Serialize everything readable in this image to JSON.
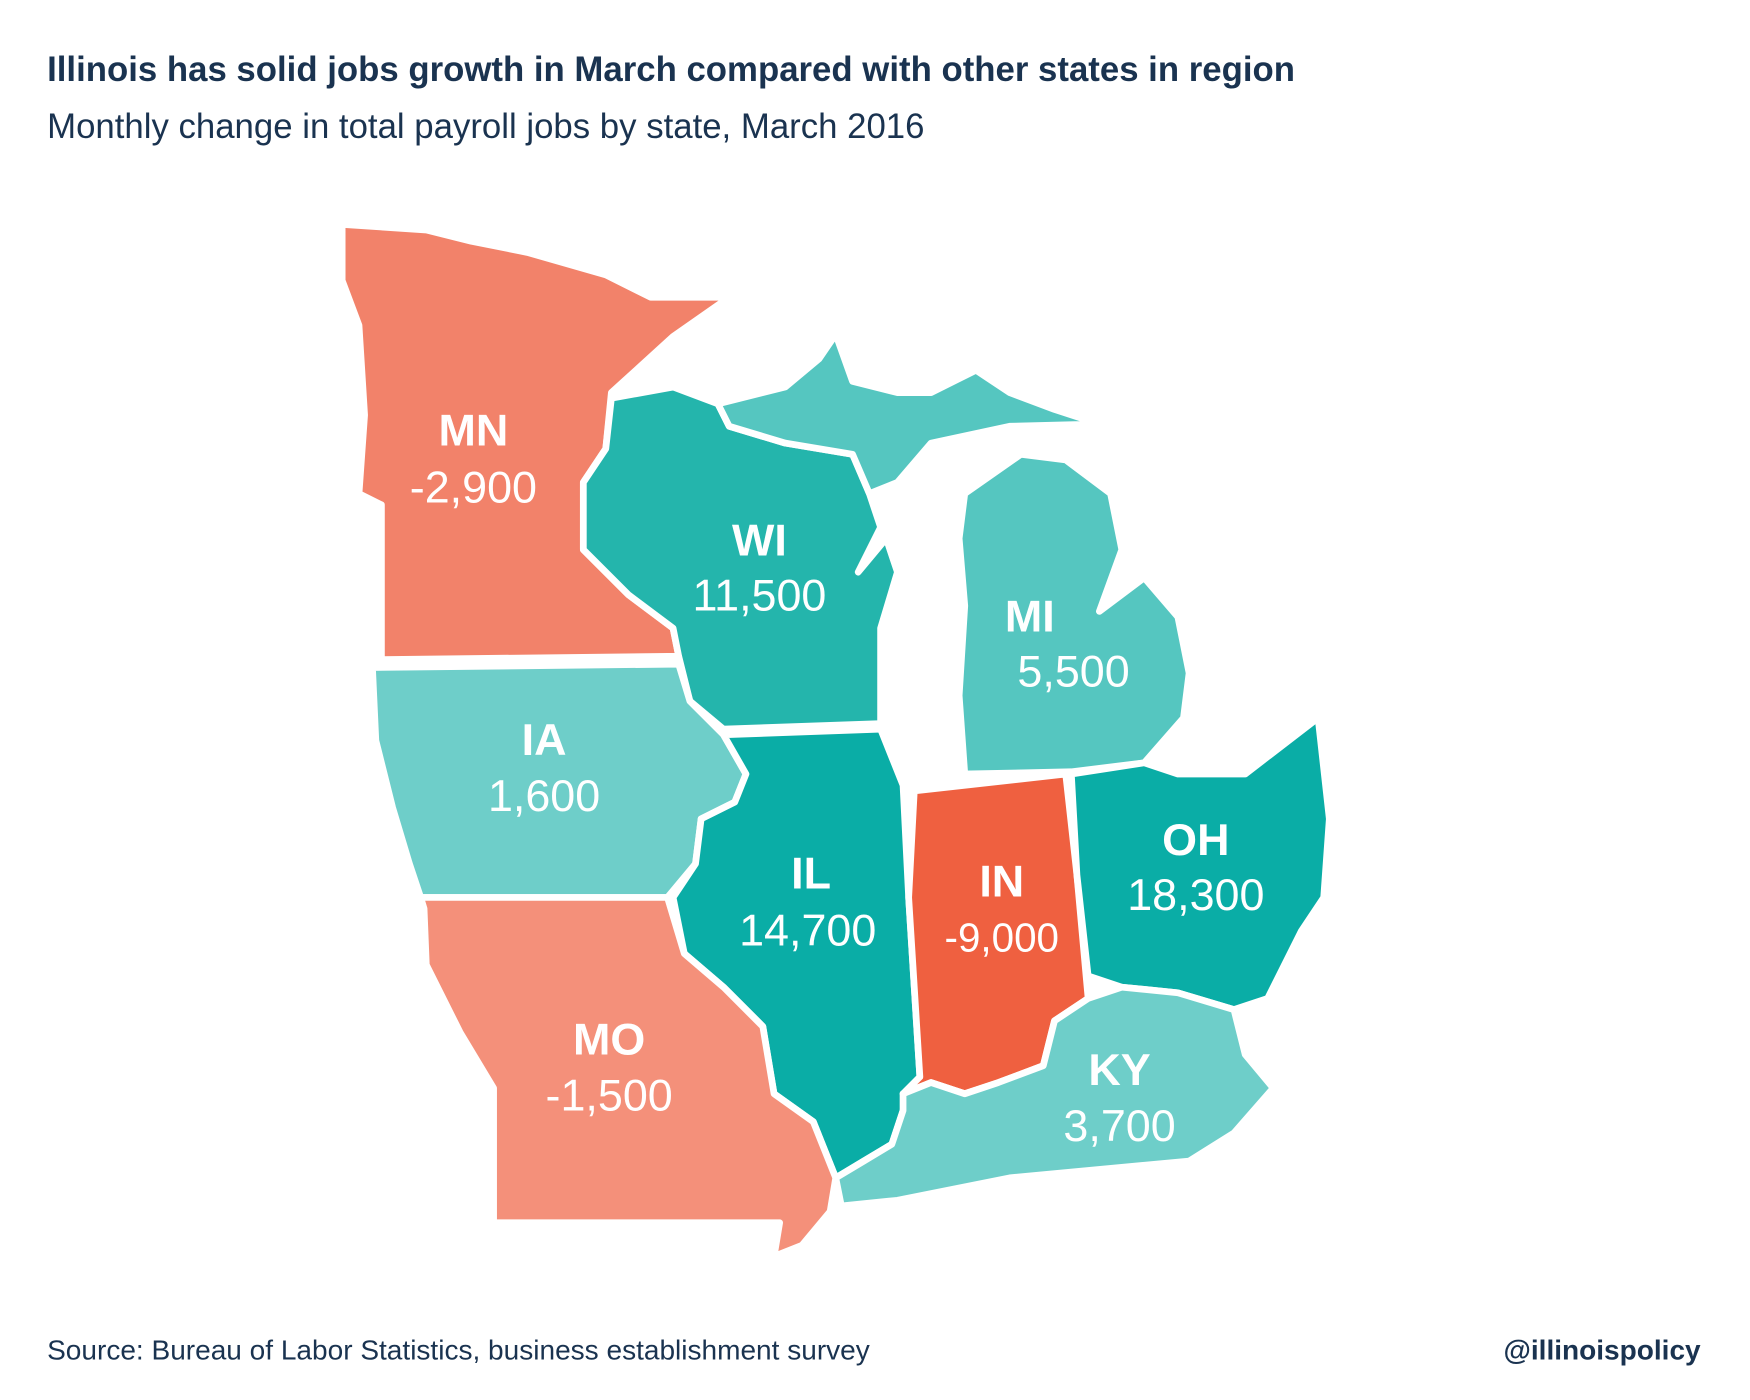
{
  "title": "Illinois has solid jobs growth in March compared with other states in region",
  "subtitle": "Monthly change in total payroll jobs by state, March 2016",
  "source": "Source: Bureau of Labor Statistics, business establishment survey",
  "handle": "@illinoispolicy",
  "states": [
    {
      "abbr": "MN",
      "value": "-2,900",
      "color": "#f2826a"
    },
    {
      "abbr": "WI",
      "value": "11,500",
      "color": "#24b5ac"
    },
    {
      "abbr": "MI",
      "value": "5,500",
      "color": "#55c6c0"
    },
    {
      "abbr": "IA",
      "value": "1,600",
      "color": "#6ecec9"
    },
    {
      "abbr": "IL",
      "value": "14,700",
      "color": "#0aada6"
    },
    {
      "abbr": "IN",
      "value": "-9,000",
      "color": "#ef6040"
    },
    {
      "abbr": "OH",
      "value": "18,300",
      "color": "#0aada6"
    },
    {
      "abbr": "KY",
      "value": "3,700",
      "color": "#6ecec9"
    },
    {
      "abbr": "MO",
      "value": "-1,500",
      "color": "#f4907a"
    }
  ]
}
